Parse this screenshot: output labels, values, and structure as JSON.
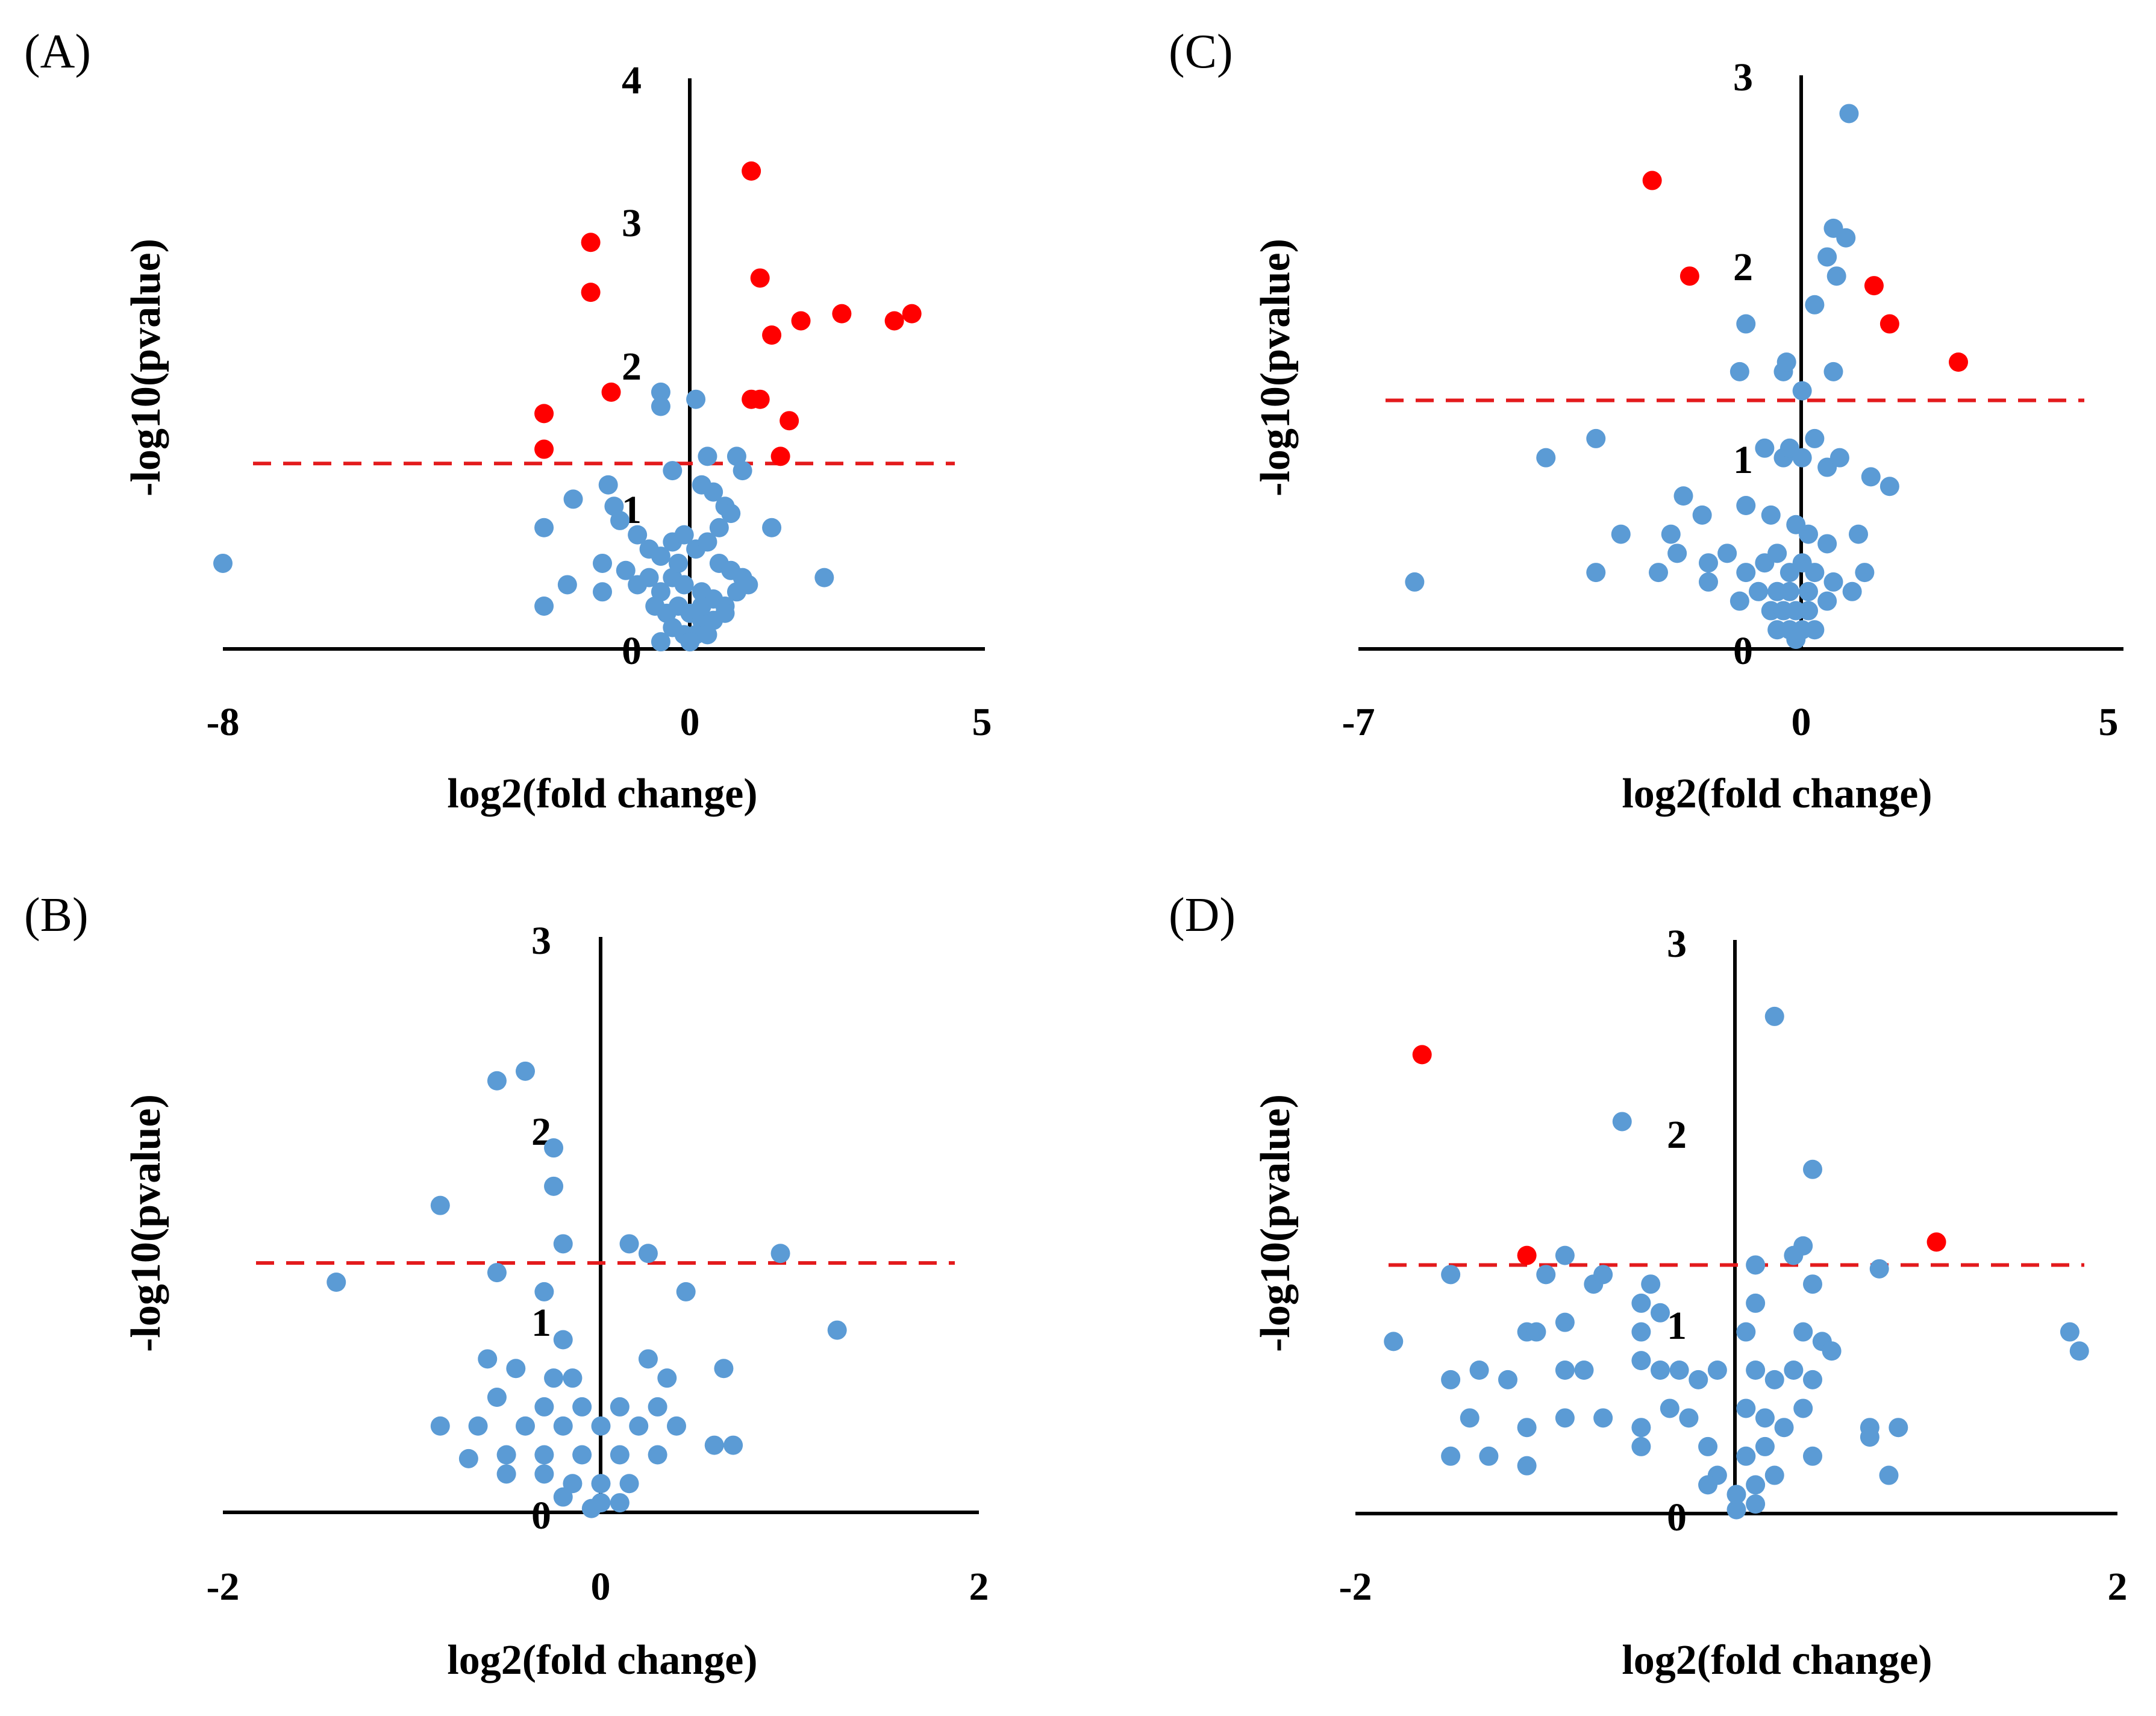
{
  "colors": {
    "significant": "#ff0000",
    "not_significant": "#5b9bd5",
    "threshold": "#e31a1c",
    "axis": "#000000"
  },
  "chart_data": [
    {
      "panel": "(A)",
      "type": "scatter",
      "xlabel": "log2(fold change)",
      "ylabel": "-log10(pvalue)",
      "xlim": [
        -8,
        5
      ],
      "ylim": [
        0,
        4
      ],
      "x_ticks": [
        "-8",
        "0",
        "5"
      ],
      "y_ticks": [
        "0",
        "1",
        "2",
        "3",
        "4"
      ],
      "threshold_y": 1.3,
      "significant": [
        [
          1.05,
          3.35
        ],
        [
          -1.7,
          2.85
        ],
        [
          -1.7,
          2.5
        ],
        [
          1.2,
          2.6
        ],
        [
          1.9,
          2.3
        ],
        [
          2.6,
          2.35
        ],
        [
          3.5,
          2.3
        ],
        [
          3.8,
          2.35
        ],
        [
          1.4,
          2.2
        ],
        [
          -1.35,
          1.8
        ],
        [
          1.05,
          1.75
        ],
        [
          1.2,
          1.75
        ],
        [
          1.7,
          1.6
        ],
        [
          1.55,
          1.35
        ],
        [
          -2.5,
          1.65
        ],
        [
          -2.5,
          1.4
        ]
      ],
      "not_significant": [
        [
          -8,
          0.6
        ],
        [
          -2.5,
          0.85
        ],
        [
          -2,
          1.05
        ],
        [
          -2.5,
          0.3
        ],
        [
          -2.1,
          0.45
        ],
        [
          -1.4,
          1.15
        ],
        [
          -1.3,
          1.0
        ],
        [
          -1.5,
          0.6
        ],
        [
          -1.5,
          0.4
        ],
        [
          -0.5,
          1.8
        ],
        [
          -0.5,
          1.7
        ],
        [
          0.1,
          1.75
        ],
        [
          0.3,
          1.35
        ],
        [
          0.8,
          1.35
        ],
        [
          0.9,
          1.25
        ],
        [
          -0.3,
          1.25
        ],
        [
          0.2,
          1.15
        ],
        [
          0.4,
          1.1
        ],
        [
          0.6,
          1.0
        ],
        [
          1.4,
          0.85
        ],
        [
          2.3,
          0.5
        ],
        [
          -1.2,
          0.9
        ],
        [
          -0.9,
          0.8
        ],
        [
          -0.7,
          0.7
        ],
        [
          -0.5,
          0.65
        ],
        [
          -0.3,
          0.75
        ],
        [
          -0.1,
          0.8
        ],
        [
          0.1,
          0.7
        ],
        [
          0.3,
          0.75
        ],
        [
          0.5,
          0.6
        ],
        [
          0.7,
          0.55
        ],
        [
          0.9,
          0.5
        ],
        [
          -1.1,
          0.55
        ],
        [
          -0.9,
          0.45
        ],
        [
          -0.7,
          0.5
        ],
        [
          -0.5,
          0.4
        ],
        [
          -0.3,
          0.5
        ],
        [
          -0.1,
          0.45
        ],
        [
          0.2,
          0.4
        ],
        [
          0.4,
          0.35
        ],
        [
          0.6,
          0.3
        ],
        [
          0.8,
          0.4
        ],
        [
          1.0,
          0.45
        ],
        [
          -0.6,
          0.3
        ],
        [
          -0.4,
          0.25
        ],
        [
          -0.2,
          0.3
        ],
        [
          0.0,
          0.25
        ],
        [
          0.2,
          0.2
        ],
        [
          0.4,
          0.2
        ],
        [
          0.6,
          0.25
        ],
        [
          -0.3,
          0.15
        ],
        [
          -0.1,
          0.1
        ],
        [
          0.1,
          0.1
        ],
        [
          0.3,
          0.1
        ],
        [
          -0.5,
          0.05
        ],
        [
          0.0,
          0.05
        ],
        [
          0.2,
          0.3
        ],
        [
          -0.2,
          0.6
        ],
        [
          0.5,
          0.85
        ],
        [
          0.7,
          0.95
        ]
      ]
    },
    {
      "panel": "(B)",
      "type": "scatter",
      "xlabel": "log2(fold change)",
      "ylabel": "-log10(pvalue)",
      "xlim": [
        -2,
        2
      ],
      "ylim": [
        0,
        3
      ],
      "x_ticks": [
        "-2",
        "0",
        "2"
      ],
      "y_ticks": [
        "0",
        "1",
        "2",
        "3"
      ],
      "threshold_y": 1.3,
      "significant": [],
      "not_significant": [
        [
          -0.4,
          2.3
        ],
        [
          -0.55,
          2.25
        ],
        [
          -0.25,
          1.9
        ],
        [
          -0.25,
          1.7
        ],
        [
          -0.85,
          1.6
        ],
        [
          -0.2,
          1.4
        ],
        [
          0.15,
          1.4
        ],
        [
          0.25,
          1.35
        ],
        [
          0.95,
          1.35
        ],
        [
          -1.4,
          1.2
        ],
        [
          -0.55,
          1.25
        ],
        [
          0.45,
          1.15
        ],
        [
          -0.3,
          1.15
        ],
        [
          1.25,
          0.95
        ],
        [
          -0.2,
          0.9
        ],
        [
          -0.6,
          0.8
        ],
        [
          -0.45,
          0.75
        ],
        [
          0.25,
          0.8
        ],
        [
          0.65,
          0.75
        ],
        [
          -0.25,
          0.7
        ],
        [
          -0.15,
          0.7
        ],
        [
          0.35,
          0.7
        ],
        [
          -0.55,
          0.6
        ],
        [
          -0.3,
          0.55
        ],
        [
          -0.1,
          0.55
        ],
        [
          0.1,
          0.55
        ],
        [
          0.3,
          0.55
        ],
        [
          -0.85,
          0.45
        ],
        [
          -0.65,
          0.45
        ],
        [
          -0.4,
          0.45
        ],
        [
          -0.2,
          0.45
        ],
        [
          0.0,
          0.45
        ],
        [
          0.2,
          0.45
        ],
        [
          0.4,
          0.45
        ],
        [
          0.6,
          0.35
        ],
        [
          0.7,
          0.35
        ],
        [
          -0.7,
          0.28
        ],
        [
          -0.5,
          0.3
        ],
        [
          -0.3,
          0.3
        ],
        [
          -0.1,
          0.3
        ],
        [
          0.1,
          0.3
        ],
        [
          0.3,
          0.3
        ],
        [
          -0.5,
          0.2
        ],
        [
          -0.3,
          0.2
        ],
        [
          -0.15,
          0.15
        ],
        [
          0.0,
          0.15
        ],
        [
          0.15,
          0.15
        ],
        [
          -0.2,
          0.08
        ],
        [
          0.0,
          0.05
        ],
        [
          0.1,
          0.05
        ],
        [
          -0.05,
          0.02
        ]
      ]
    },
    {
      "panel": "(C)",
      "type": "scatter",
      "xlabel": "log2(fold change)",
      "ylabel": "-log10(pvalue)",
      "xlim": [
        -7,
        5
      ],
      "ylim": [
        0,
        3
      ],
      "x_ticks": [
        "-7",
        "0",
        "5"
      ],
      "y_ticks": [
        "0",
        "1",
        "2",
        "3"
      ],
      "threshold_y": 1.3,
      "significant": [
        [
          -2.3,
          2.45
        ],
        [
          -1.7,
          1.95
        ],
        [
          1.25,
          1.9
        ],
        [
          1.5,
          1.7
        ],
        [
          2.6,
          1.5
        ]
      ],
      "not_significant": [
        [
          0.85,
          2.8
        ],
        [
          0.6,
          2.2
        ],
        [
          0.8,
          2.15
        ],
        [
          0.5,
          2.05
        ],
        [
          0.65,
          1.95
        ],
        [
          -0.8,
          1.7
        ],
        [
          0.3,
          1.8
        ],
        [
          -0.9,
          1.45
        ],
        [
          -0.2,
          1.45
        ],
        [
          -0.15,
          1.5
        ],
        [
          0.1,
          1.35
        ],
        [
          0.6,
          1.45
        ],
        [
          -3.2,
          1.1
        ],
        [
          -4,
          1.0
        ],
        [
          -1.8,
          0.8
        ],
        [
          -0.5,
          1.05
        ],
        [
          -0.2,
          1.0
        ],
        [
          -0.1,
          1.05
        ],
        [
          0.1,
          1.0
        ],
        [
          0.3,
          1.1
        ],
        [
          0.5,
          0.95
        ],
        [
          0.7,
          1.0
        ],
        [
          1.2,
          0.9
        ],
        [
          1.5,
          0.85
        ],
        [
          -2.8,
          0.6
        ],
        [
          -2,
          0.6
        ],
        [
          -1.5,
          0.7
        ],
        [
          -0.8,
          0.75
        ],
        [
          -0.4,
          0.7
        ],
        [
          0,
          0.65
        ],
        [
          0.2,
          0.6
        ],
        [
          0.5,
          0.55
        ],
        [
          1,
          0.6
        ],
        [
          -6.1,
          0.35
        ],
        [
          -3.2,
          0.4
        ],
        [
          -2.2,
          0.4
        ],
        [
          -1.9,
          0.5
        ],
        [
          -1.4,
          0.45
        ],
        [
          -1.1,
          0.5
        ],
        [
          -0.8,
          0.4
        ],
        [
          -0.5,
          0.45
        ],
        [
          -0.3,
          0.5
        ],
        [
          -0.1,
          0.4
        ],
        [
          0.1,
          0.45
        ],
        [
          0.3,
          0.4
        ],
        [
          0.6,
          0.35
        ],
        [
          0.9,
          0.3
        ],
        [
          1.1,
          0.4
        ],
        [
          -1.4,
          0.35
        ],
        [
          -0.9,
          0.25
        ],
        [
          -0.6,
          0.3
        ],
        [
          -0.3,
          0.3
        ],
        [
          -0.1,
          0.3
        ],
        [
          0.2,
          0.3
        ],
        [
          0.5,
          0.25
        ],
        [
          -0.4,
          0.2
        ],
        [
          -0.2,
          0.2
        ],
        [
          0,
          0.2
        ],
        [
          0.2,
          0.2
        ],
        [
          -0.3,
          0.1
        ],
        [
          -0.1,
          0.1
        ],
        [
          0.1,
          0.1
        ],
        [
          0.3,
          0.1
        ],
        [
          0,
          0.05
        ]
      ]
    },
    {
      "panel": "(D)",
      "type": "scatter",
      "xlabel": "log2(fold change)",
      "ylabel": "-log10(pvalue)",
      "xlim": [
        -2,
        2
      ],
      "ylim": [
        0,
        3
      ],
      "x_ticks": [
        "-2",
        "2"
      ],
      "y_ticks": [
        "0",
        "1",
        "2",
        "3"
      ],
      "threshold_y": 1.3,
      "significant": [
        [
          -1.65,
          2.4
        ],
        [
          -1.1,
          1.35
        ],
        [
          1.05,
          1.42
        ]
      ],
      "not_significant": [
        [
          0.2,
          2.6
        ],
        [
          -0.6,
          2.05
        ],
        [
          0.4,
          1.8
        ],
        [
          -0.9,
          1.35
        ],
        [
          0.35,
          1.4
        ],
        [
          0.3,
          1.35
        ],
        [
          0.1,
          1.3
        ],
        [
          -1.5,
          1.25
        ],
        [
          -1.0,
          1.25
        ],
        [
          -0.75,
          1.2
        ],
        [
          -0.7,
          1.25
        ],
        [
          -0.45,
          1.2
        ],
        [
          0.4,
          1.2
        ],
        [
          0.75,
          1.28
        ],
        [
          -0.4,
          1.05
        ],
        [
          -0.5,
          1.1
        ],
        [
          0.1,
          1.1
        ],
        [
          -1.8,
          0.9
        ],
        [
          -1.1,
          0.95
        ],
        [
          -1.05,
          0.95
        ],
        [
          -0.9,
          1.0
        ],
        [
          -0.5,
          0.95
        ],
        [
          0.05,
          0.95
        ],
        [
          0.35,
          0.95
        ],
        [
          0.45,
          0.9
        ],
        [
          0.5,
          0.85
        ],
        [
          1.75,
          0.95
        ],
        [
          1.8,
          0.85
        ],
        [
          -1.5,
          0.7
        ],
        [
          -1.35,
          0.75
        ],
        [
          -1.2,
          0.7
        ],
        [
          -0.9,
          0.75
        ],
        [
          -0.8,
          0.75
        ],
        [
          -0.5,
          0.8
        ],
        [
          -0.4,
          0.75
        ],
        [
          -0.3,
          0.75
        ],
        [
          -0.2,
          0.7
        ],
        [
          -0.1,
          0.75
        ],
        [
          0.1,
          0.75
        ],
        [
          0.2,
          0.7
        ],
        [
          0.3,
          0.75
        ],
        [
          0.4,
          0.7
        ],
        [
          -1.4,
          0.5
        ],
        [
          -1.1,
          0.45
        ],
        [
          -0.9,
          0.5
        ],
        [
          -0.7,
          0.5
        ],
        [
          -0.5,
          0.45
        ],
        [
          -0.35,
          0.55
        ],
        [
          -0.25,
          0.5
        ],
        [
          0.05,
          0.55
        ],
        [
          0.15,
          0.5
        ],
        [
          0.25,
          0.45
        ],
        [
          0.35,
          0.55
        ],
        [
          0.7,
          0.45
        ],
        [
          0.85,
          0.45
        ],
        [
          -1.5,
          0.3
        ],
        [
          -1.3,
          0.3
        ],
        [
          -1.1,
          0.25
        ],
        [
          -0.5,
          0.35
        ],
        [
          -0.15,
          0.35
        ],
        [
          0.05,
          0.3
        ],
        [
          0.15,
          0.35
        ],
        [
          0.4,
          0.3
        ],
        [
          0.7,
          0.4
        ],
        [
          0.8,
          0.2
        ],
        [
          -0.1,
          0.2
        ],
        [
          0.1,
          0.15
        ],
        [
          0.2,
          0.2
        ],
        [
          -0.15,
          0.15
        ],
        [
          0,
          0.1
        ],
        [
          0.1,
          0.05
        ],
        [
          0,
          0.02
        ]
      ]
    }
  ]
}
